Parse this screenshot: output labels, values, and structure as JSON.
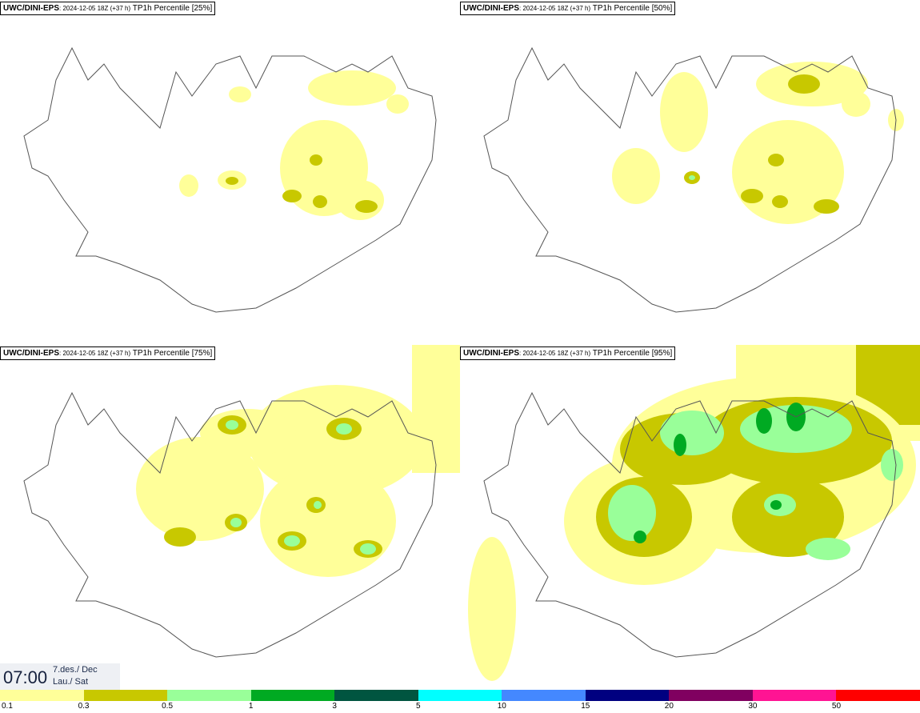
{
  "panels": [
    {
      "model": "UWC/DINI-EPS",
      "run": ": 2024-12-05 18Z (+37 h)",
      "param": " TP1h Percentile [25%]"
    },
    {
      "model": "UWC/DINI-EPS",
      "run": ": 2024-12-05 18Z (+37 h)",
      "param": " TP1h Percentile [50%]"
    },
    {
      "model": "UWC/DINI-EPS",
      "run": ": 2024-12-05 18Z (+37 h)",
      "param": " TP1h Percentile [75%]"
    },
    {
      "model": "UWC/DINI-EPS",
      "run": ": 2024-12-05 18Z (+37 h)",
      "param": " TP1h Percentile [95%]"
    }
  ],
  "time": {
    "clock": "07:00",
    "date_line1": "7.des./ Dec",
    "date_line2": "Lau./ Sat"
  },
  "legend": {
    "colors": [
      "#ffff99",
      "#c8c800",
      "#99ff99",
      "#00aa22",
      "#005540",
      "#00ffff",
      "#4488ff",
      "#000080",
      "#800060",
      "#ff1493",
      "#ff0000"
    ],
    "labels": [
      "0.1",
      "0.3",
      "0.5",
      "1",
      "3",
      "5",
      "10",
      "15",
      "20",
      "30",
      "50"
    ]
  }
}
